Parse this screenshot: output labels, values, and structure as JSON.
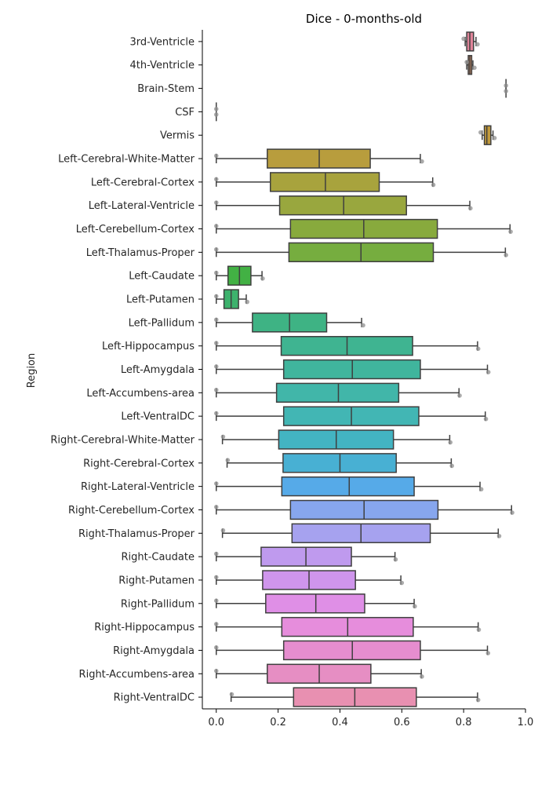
{
  "chart_data": {
    "type": "box",
    "orientation": "horizontal",
    "title": "Dice - 0-months-old",
    "xlabel": "",
    "ylabel": "Region",
    "xlim": [
      -0.045,
      1.0
    ],
    "xticks": [
      "0.0",
      "0.2",
      "0.4",
      "0.6",
      "0.8",
      "1.0"
    ],
    "xtick_values": [
      0.0,
      0.2,
      0.4,
      0.6,
      0.8,
      1.0
    ],
    "grid": false,
    "legend": "none",
    "categories": [
      "3rd-Ventricle",
      "4th-Ventricle",
      "Brain-Stem",
      "CSF",
      "Vermis",
      "Left-Cerebral-White-Matter",
      "Left-Cerebral-Cortex",
      "Left-Lateral-Ventricle",
      "Left-Cerebellum-Cortex",
      "Left-Thalamus-Proper",
      "Left-Caudate",
      "Left-Putamen",
      "Left-Pallidum",
      "Left-Hippocampus",
      "Left-Amygdala",
      "Left-Accumbens-area",
      "Left-VentralDC",
      "Right-Cerebral-White-Matter",
      "Right-Cerebral-Cortex",
      "Right-Lateral-Ventricle",
      "Right-Cerebellum-Cortex",
      "Right-Thalamus-Proper",
      "Right-Caudate",
      "Right-Putamen",
      "Right-Pallidum",
      "Right-Hippocampus",
      "Right-Amygdala",
      "Right-Accumbens-area",
      "Right-VentralDC"
    ],
    "boxes": [
      {
        "whislo": 0.805,
        "q1": 0.81,
        "med": 0.82,
        "q3": 0.832,
        "whishi": 0.84,
        "points": [
          0.8,
          0.845
        ],
        "color": "#e0849a"
      },
      {
        "whislo": 0.81,
        "q1": 0.815,
        "med": 0.82,
        "q3": 0.826,
        "whishi": 0.83,
        "points": [
          0.81,
          0.835
        ],
        "color": "#cf8d66"
      },
      {
        "whislo": 0.937,
        "q1": 0.937,
        "med": 0.937,
        "q3": 0.937,
        "whishi": 0.937,
        "points": [
          0.937,
          0.937
        ],
        "color": "#c79435"
      },
      {
        "whislo": 0.0,
        "q1": 0.0,
        "med": 0.0,
        "q3": 0.0,
        "whishi": 0.0,
        "points": [
          0.0,
          0.0
        ],
        "color": "#c59b3a"
      },
      {
        "whislo": 0.86,
        "q1": 0.867,
        "med": 0.875,
        "q3": 0.888,
        "whishi": 0.895,
        "points": [
          0.855,
          0.9
        ],
        "color": "#c29a3c"
      },
      {
        "whislo": 0.0,
        "q1": 0.165,
        "med": 0.333,
        "q3": 0.498,
        "whishi": 0.66,
        "points": [
          0.0,
          0.665
        ],
        "color": "#b89d3d"
      },
      {
        "whislo": 0.0,
        "q1": 0.175,
        "med": 0.353,
        "q3": 0.527,
        "whishi": 0.7,
        "points": [
          0.0,
          0.702
        ],
        "color": "#a8a33d"
      },
      {
        "whislo": 0.0,
        "q1": 0.205,
        "med": 0.412,
        "q3": 0.615,
        "whishi": 0.82,
        "points": [
          0.0,
          0.822
        ],
        "color": "#99a73e"
      },
      {
        "whislo": 0.0,
        "q1": 0.24,
        "med": 0.477,
        "q3": 0.715,
        "whishi": 0.95,
        "points": [
          0.0,
          0.952
        ],
        "color": "#88aa3d"
      },
      {
        "whislo": 0.0,
        "q1": 0.235,
        "med": 0.468,
        "q3": 0.702,
        "whishi": 0.935,
        "points": [
          0.0,
          0.937
        ],
        "color": "#76ad3f"
      },
      {
        "whislo": 0.0,
        "q1": 0.038,
        "med": 0.075,
        "q3": 0.112,
        "whishi": 0.148,
        "points": [
          0.0,
          0.15
        ],
        "color": "#42b144"
      },
      {
        "whislo": 0.0,
        "q1": 0.025,
        "med": 0.048,
        "q3": 0.072,
        "whishi": 0.097,
        "points": [
          0.0,
          0.1
        ],
        "color": "#3db26d"
      },
      {
        "whislo": 0.0,
        "q1": 0.117,
        "med": 0.237,
        "q3": 0.357,
        "whishi": 0.47,
        "points": [
          0.0,
          0.475
        ],
        "color": "#3eb384"
      },
      {
        "whislo": 0.0,
        "q1": 0.21,
        "med": 0.423,
        "q3": 0.635,
        "whishi": 0.845,
        "points": [
          0.0,
          0.847
        ],
        "color": "#3fb491"
      },
      {
        "whislo": 0.0,
        "q1": 0.218,
        "med": 0.44,
        "q3": 0.66,
        "whishi": 0.877,
        "points": [
          0.0,
          0.88
        ],
        "color": "#40b59d"
      },
      {
        "whislo": 0.0,
        "q1": 0.195,
        "med": 0.395,
        "q3": 0.59,
        "whishi": 0.785,
        "points": [
          0.0,
          0.787
        ],
        "color": "#41b6a9"
      },
      {
        "whislo": 0.0,
        "q1": 0.218,
        "med": 0.437,
        "q3": 0.655,
        "whishi": 0.87,
        "points": [
          0.0,
          0.872
        ],
        "color": "#42b6b4"
      },
      {
        "whislo": 0.02,
        "q1": 0.202,
        "med": 0.388,
        "q3": 0.573,
        "whishi": 0.755,
        "points": [
          0.022,
          0.757
        ],
        "color": "#43b4c2"
      },
      {
        "whislo": 0.035,
        "q1": 0.216,
        "med": 0.4,
        "q3": 0.582,
        "whishi": 0.76,
        "points": [
          0.037,
          0.762
        ],
        "color": "#48b0d3"
      },
      {
        "whislo": 0.0,
        "q1": 0.212,
        "med": 0.43,
        "q3": 0.64,
        "whishi": 0.853,
        "points": [
          0.0,
          0.857
        ],
        "color": "#56aae8"
      },
      {
        "whislo": 0.0,
        "q1": 0.24,
        "med": 0.478,
        "q3": 0.717,
        "whishi": 0.955,
        "points": [
          0.0,
          0.957
        ],
        "color": "#87a6ee"
      },
      {
        "whislo": 0.02,
        "q1": 0.245,
        "med": 0.468,
        "q3": 0.692,
        "whishi": 0.912,
        "points": [
          0.022,
          0.915
        ],
        "color": "#a6a2ef"
      },
      {
        "whislo": 0.0,
        "q1": 0.145,
        "med": 0.29,
        "q3": 0.437,
        "whishi": 0.578,
        "points": [
          0.0,
          0.58
        ],
        "color": "#bf9aee"
      },
      {
        "whislo": 0.0,
        "q1": 0.15,
        "med": 0.3,
        "q3": 0.45,
        "whishi": 0.597,
        "points": [
          0.0,
          0.6
        ],
        "color": "#cf95ec"
      },
      {
        "whislo": 0.0,
        "q1": 0.16,
        "med": 0.322,
        "q3": 0.48,
        "whishi": 0.64,
        "points": [
          0.0,
          0.642
        ],
        "color": "#df8fe6"
      },
      {
        "whislo": 0.0,
        "q1": 0.212,
        "med": 0.425,
        "q3": 0.637,
        "whishi": 0.847,
        "points": [
          0.0,
          0.849
        ],
        "color": "#e68ddc"
      },
      {
        "whislo": 0.0,
        "q1": 0.218,
        "med": 0.44,
        "q3": 0.66,
        "whishi": 0.877,
        "points": [
          0.0,
          0.879
        ],
        "color": "#e68dcf"
      },
      {
        "whislo": 0.0,
        "q1": 0.165,
        "med": 0.333,
        "q3": 0.5,
        "whishi": 0.663,
        "points": [
          0.0,
          0.665
        ],
        "color": "#e68ec3"
      },
      {
        "whislo": 0.048,
        "q1": 0.25,
        "med": 0.448,
        "q3": 0.647,
        "whishi": 0.845,
        "points": [
          0.05,
          0.847
        ],
        "color": "#e890b1"
      }
    ]
  }
}
